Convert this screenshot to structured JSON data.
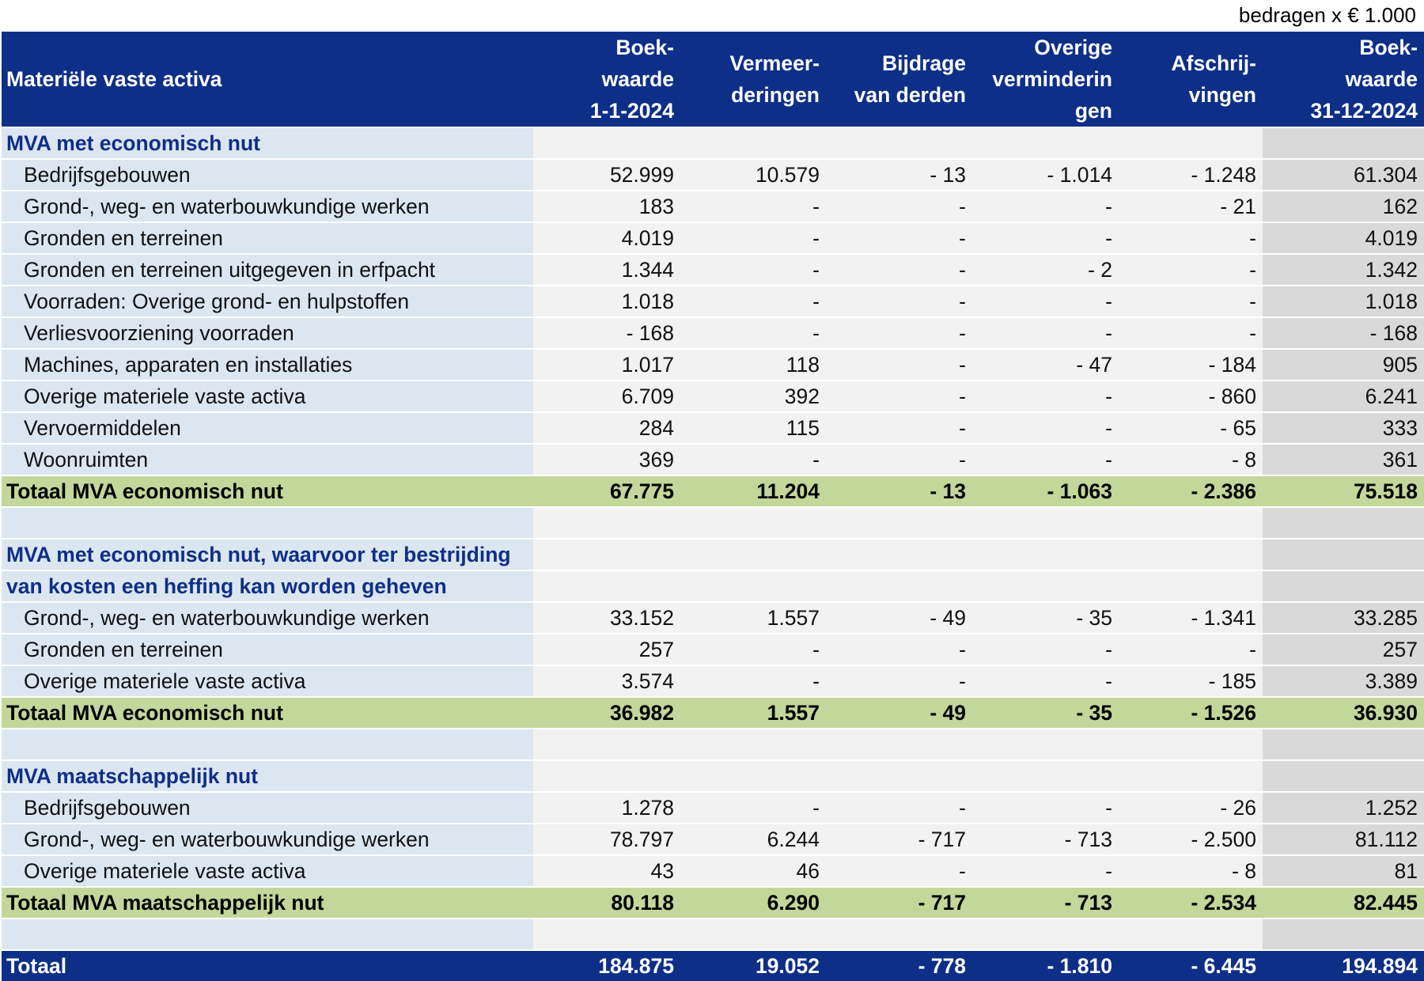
{
  "unit_note": "bedragen x € 1.000",
  "header": {
    "label": "Materiële vaste activa",
    "columns": [
      [
        "Boek-",
        "waarde",
        "1-1-2024"
      ],
      [
        "Vermeer-",
        "deringen"
      ],
      [
        "Bijdrage",
        "van derden"
      ],
      [
        "Overige",
        "verminderin",
        "gen"
      ],
      [
        "Afschrij-",
        "vingen"
      ],
      [
        "Boek-",
        "waarde",
        "31-12-2024"
      ]
    ]
  },
  "rows": [
    {
      "type": "section",
      "label": "MVA met economisch nut",
      "values": [
        "",
        "",
        "",
        "",
        "",
        ""
      ]
    },
    {
      "type": "item",
      "label": "Bedrijfsgebouwen",
      "values": [
        "52.999",
        "10.579",
        "- 13",
        "- 1.014",
        "- 1.248",
        "61.304"
      ]
    },
    {
      "type": "item",
      "label": "Grond-, weg- en waterbouwkundige werken",
      "values": [
        "183",
        "-",
        "-",
        "-",
        "- 21",
        "162"
      ]
    },
    {
      "type": "item",
      "label": "Gronden en terreinen",
      "values": [
        "4.019",
        "-",
        "-",
        "-",
        "-",
        "4.019"
      ]
    },
    {
      "type": "item",
      "label": "Gronden en terreinen uitgegeven in erfpacht",
      "values": [
        "1.344",
        "-",
        "-",
        "- 2",
        "-",
        "1.342"
      ]
    },
    {
      "type": "item",
      "label": "Voorraden: Overige grond- en hulpstoffen",
      "values": [
        "1.018",
        "-",
        "-",
        "-",
        "-",
        "1.018"
      ]
    },
    {
      "type": "item",
      "label": "Verliesvoorziening voorraden",
      "values": [
        "- 168",
        "-",
        "-",
        "-",
        "-",
        "- 168"
      ]
    },
    {
      "type": "item",
      "label": "Machines, apparaten en installaties",
      "values": [
        "1.017",
        "118",
        "-",
        "- 47",
        "- 184",
        "905"
      ]
    },
    {
      "type": "item",
      "label": "Overige materiele vaste activa",
      "values": [
        "6.709",
        "392",
        "-",
        "-",
        "- 860",
        "6.241"
      ]
    },
    {
      "type": "item",
      "label": "Vervoermiddelen",
      "values": [
        "284",
        "115",
        "-",
        "-",
        "- 65",
        "333"
      ]
    },
    {
      "type": "item",
      "label": "Woonruimten",
      "values": [
        "369",
        "-",
        "-",
        "-",
        "- 8",
        "361"
      ]
    },
    {
      "type": "total",
      "label": "Totaal MVA economisch nut",
      "values": [
        "67.775",
        "11.204",
        "- 13",
        "- 1.063",
        "- 2.386",
        "75.518"
      ]
    },
    {
      "type": "blank",
      "label": "",
      "values": [
        "",
        "",
        "",
        "",
        "",
        ""
      ]
    },
    {
      "type": "section",
      "label": "MVA met economisch nut, waarvoor ter bestrijding",
      "values": [
        "",
        "",
        "",
        "",
        "",
        ""
      ]
    },
    {
      "type": "section",
      "label": "van kosten een heffing kan worden geheven",
      "values": [
        "",
        "",
        "",
        "",
        "",
        ""
      ]
    },
    {
      "type": "item",
      "label": "Grond-, weg- en waterbouwkundige werken",
      "values": [
        "33.152",
        "1.557",
        "- 49",
        "- 35",
        "- 1.341",
        "33.285"
      ]
    },
    {
      "type": "item",
      "label": "Gronden en terreinen",
      "values": [
        "257",
        "-",
        "-",
        "-",
        "-",
        "257"
      ]
    },
    {
      "type": "item",
      "label": "Overige materiele vaste activa",
      "values": [
        "3.574",
        "-",
        "-",
        "-",
        "- 185",
        "3.389"
      ]
    },
    {
      "type": "total",
      "label": "Totaal MVA economisch nut",
      "values": [
        "36.982",
        "1.557",
        "- 49",
        "- 35",
        "- 1.526",
        "36.930"
      ]
    },
    {
      "type": "blank",
      "label": "",
      "values": [
        "",
        "",
        "",
        "",
        "",
        ""
      ]
    },
    {
      "type": "section",
      "label": "MVA maatschappelijk nut",
      "values": [
        "",
        "",
        "",
        "",
        "",
        ""
      ]
    },
    {
      "type": "item",
      "label": "Bedrijfsgebouwen",
      "values": [
        "1.278",
        "-",
        "-",
        "-",
        "- 26",
        "1.252"
      ]
    },
    {
      "type": "item",
      "label": "Grond-, weg- en waterbouwkundige werken",
      "values": [
        "78.797",
        "6.244",
        "- 717",
        "- 713",
        "- 2.500",
        "81.112"
      ]
    },
    {
      "type": "item",
      "label": "Overige materiele vaste activa",
      "values": [
        "43",
        "46",
        "-",
        "-",
        "- 8",
        "81"
      ]
    },
    {
      "type": "total",
      "label": "Totaal MVA maatschappelijk nut",
      "values": [
        "80.118",
        "6.290",
        "- 717",
        "- 713",
        "- 2.534",
        "82.445"
      ]
    },
    {
      "type": "blank",
      "label": "",
      "values": [
        "",
        "",
        "",
        "",
        "",
        ""
      ]
    },
    {
      "type": "grand",
      "label": "Totaal",
      "values": [
        "184.875",
        "19.052",
        "- 778",
        "- 1.810",
        "- 6.445",
        "194.894"
      ]
    }
  ]
}
